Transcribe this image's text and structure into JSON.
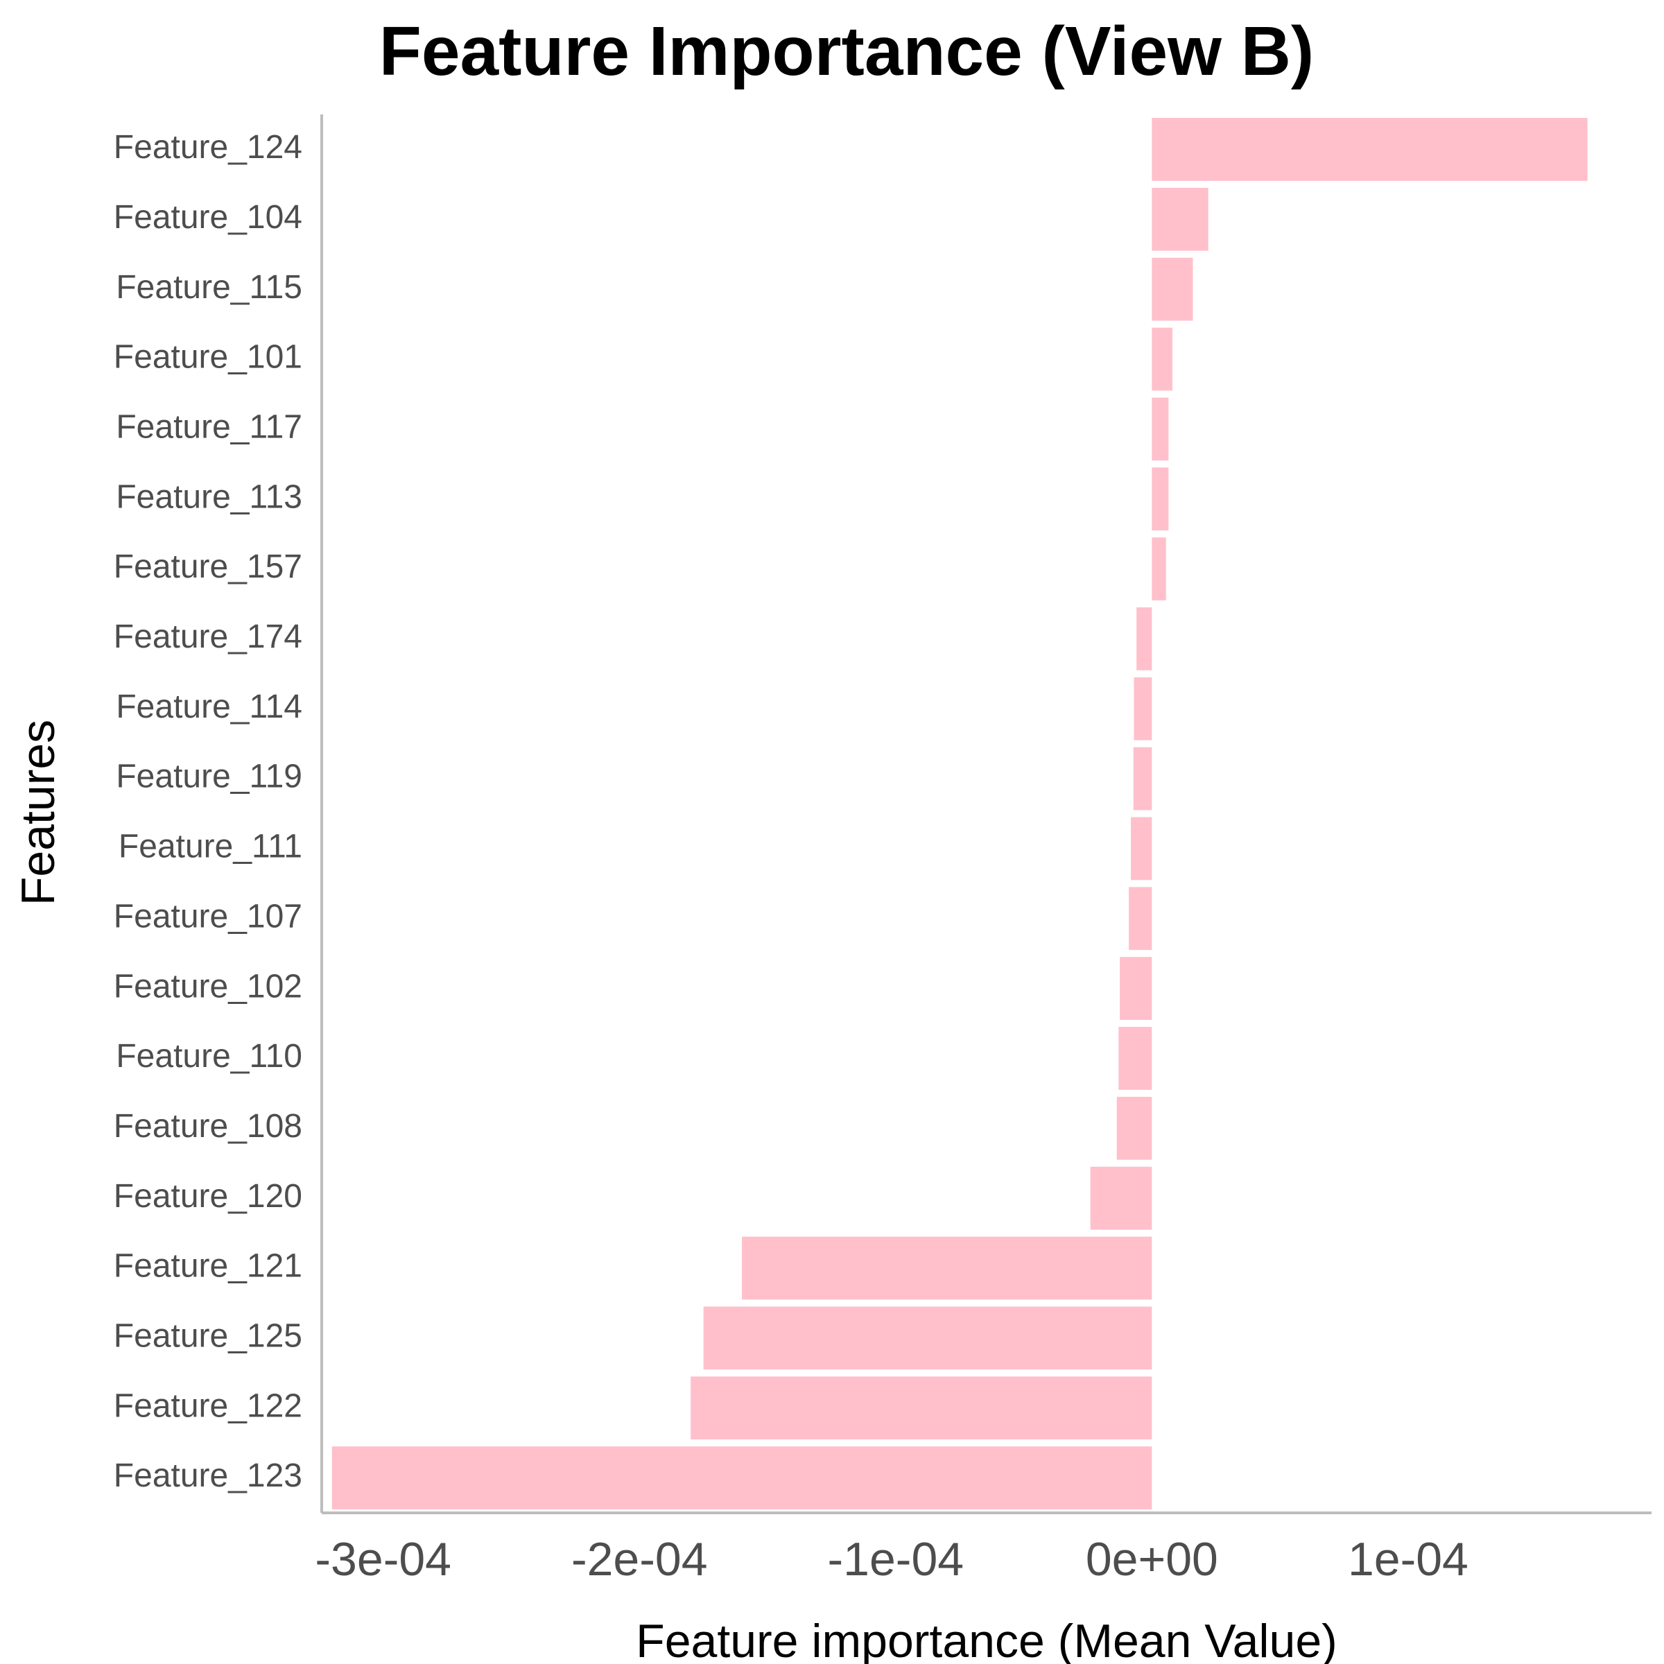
{
  "chart_data": {
    "type": "bar",
    "orientation": "horizontal",
    "title": "Feature Importance (View B)",
    "xlabel": "Feature importance (Mean Value)",
    "ylabel": "Features",
    "xlim": [
      -0.000324,
      0.000195
    ],
    "x_ticks": [
      -0.0003,
      -0.0002,
      -0.0001,
      0,
      0.0001
    ],
    "x_tick_labels": [
      "-3e-04",
      "-2e-04",
      "-1e-04",
      "0e+00",
      "1e-04"
    ],
    "grid": false,
    "legend": "none",
    "bar_color": "#FFC0CB",
    "categories": [
      "Feature_124",
      "Feature_104",
      "Feature_115",
      "Feature_101",
      "Feature_117",
      "Feature_113",
      "Feature_157",
      "Feature_174",
      "Feature_114",
      "Feature_119",
      "Feature_111",
      "Feature_107",
      "Feature_102",
      "Feature_110",
      "Feature_108",
      "Feature_120",
      "Feature_121",
      "Feature_125",
      "Feature_122",
      "Feature_123"
    ],
    "values": [
      0.00017,
      2.2e-05,
      1.6e-05,
      8e-06,
      6.5e-06,
      6.5e-06,
      5.5e-06,
      -6e-06,
      -7e-06,
      -7.2e-06,
      -8.2e-06,
      -9e-06,
      -1.25e-05,
      -1.3e-05,
      -1.37e-05,
      -2.4e-05,
      -0.00016,
      -0.000175,
      -0.00018,
      -0.00032
    ]
  }
}
